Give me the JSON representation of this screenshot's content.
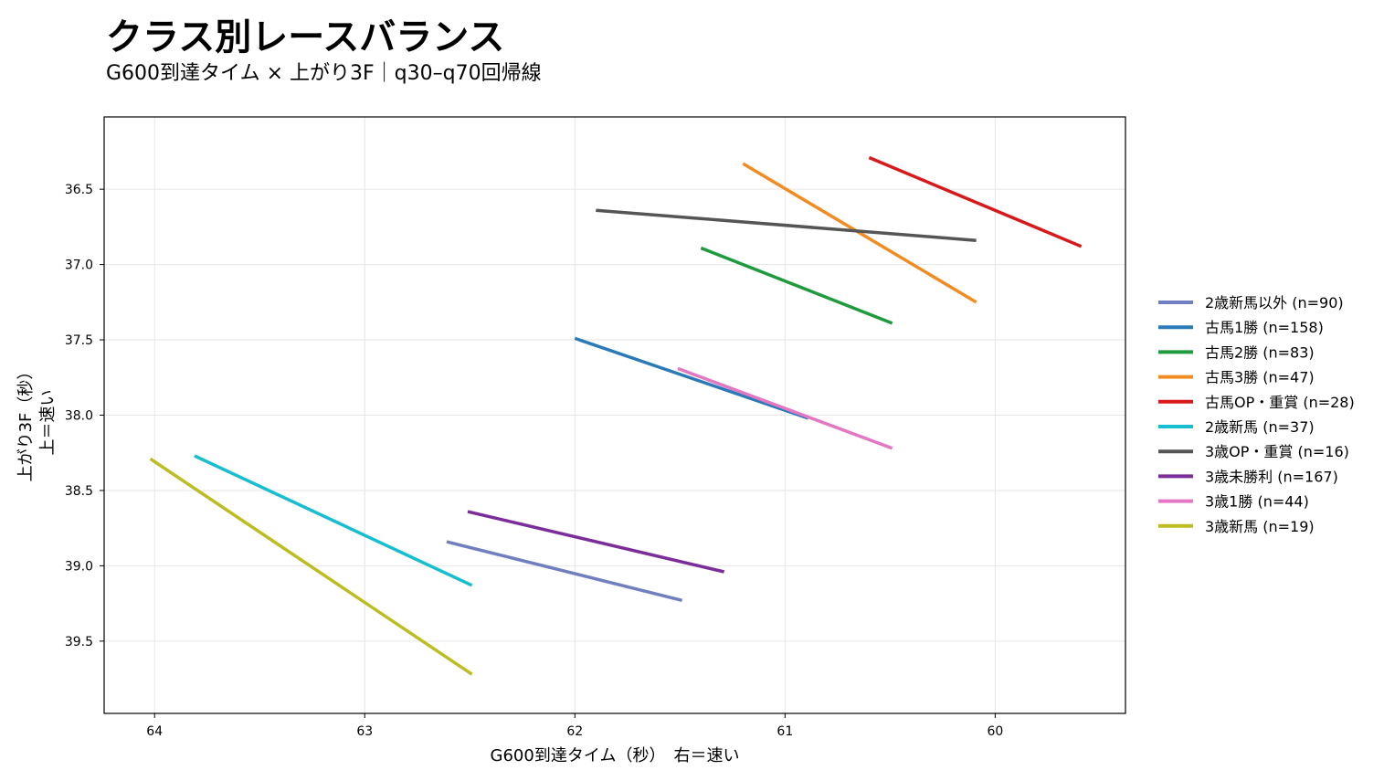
{
  "chart_data": {
    "type": "line",
    "title": "クラス別レースバランス",
    "subtitle": "G600到達タイム × 上がり3F｜q30–q70回帰線",
    "xlabel": "G600到達タイム（秒）　右＝速い",
    "ylabel_lines": [
      "上がり3F（秒）",
      "上＝速い"
    ],
    "x_reversed": true,
    "y_reversed": true,
    "xlim": [
      64.24,
      59.38
    ],
    "ylim": [
      39.98,
      36.02
    ],
    "xticks": [
      64,
      63,
      62,
      61,
      60
    ],
    "yticks": [
      36.5,
      37.0,
      37.5,
      38.0,
      38.5,
      39.0,
      39.5
    ],
    "ytick_labels": [
      "36.5",
      "37.0",
      "37.5",
      "38.0",
      "38.5",
      "39.0",
      "39.5"
    ],
    "grid": true,
    "legend_position": "right",
    "series": [
      {
        "name": "2歳新馬以外 (n=90)",
        "color": "#6f7fbf",
        "x": [
          62.61,
          61.49
        ],
        "y": [
          38.84,
          39.23
        ]
      },
      {
        "name": "古馬1勝 (n=158)",
        "color": "#2a7ab8",
        "x": [
          62.0,
          60.89
        ],
        "y": [
          37.49,
          38.02
        ]
      },
      {
        "name": "古馬2勝 (n=83)",
        "color": "#1f9a3c",
        "x": [
          61.4,
          60.49
        ],
        "y": [
          36.89,
          37.39
        ]
      },
      {
        "name": "古馬3勝 (n=47)",
        "color": "#f08c22",
        "x": [
          61.2,
          60.09
        ],
        "y": [
          36.33,
          37.25
        ]
      },
      {
        "name": "古馬OP・重賞 (n=28)",
        "color": "#d7191c",
        "x": [
          60.6,
          59.59
        ],
        "y": [
          36.29,
          36.88
        ]
      },
      {
        "name": "2歳新馬 (n=37)",
        "color": "#17becf",
        "x": [
          63.81,
          62.49
        ],
        "y": [
          38.27,
          39.13
        ]
      },
      {
        "name": "3歳OP・重賞 (n=16)",
        "color": "#555555",
        "x": [
          61.9,
          60.09
        ],
        "y": [
          36.64,
          36.84
        ]
      },
      {
        "name": "3歳未勝利 (n=167)",
        "color": "#7b2d9a",
        "x": [
          62.51,
          61.29
        ],
        "y": [
          38.64,
          39.04
        ]
      },
      {
        "name": "3歳1勝 (n=44)",
        "color": "#e377c2",
        "x": [
          61.51,
          60.49
        ],
        "y": [
          37.69,
          38.22
        ]
      },
      {
        "name": "3歳新馬 (n=19)",
        "color": "#bcbd22",
        "x": [
          64.02,
          62.49
        ],
        "y": [
          38.29,
          39.72
        ]
      }
    ]
  }
}
